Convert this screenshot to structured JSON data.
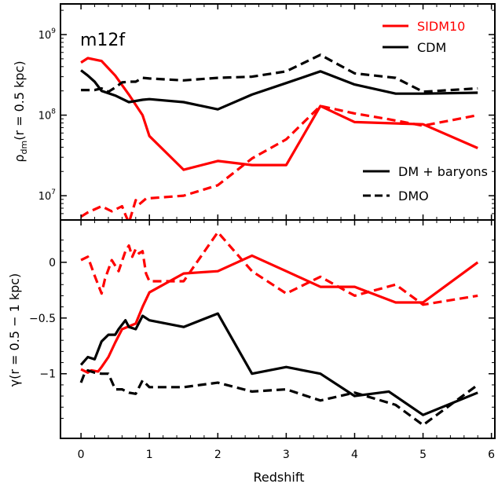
{
  "figure": {
    "xlabel": "Redshift",
    "x_ticks": [
      0,
      1,
      2,
      3,
      4,
      5,
      6
    ],
    "xlim": [
      -0.3,
      6.05
    ]
  },
  "colors": {
    "sidm": "#ff0000",
    "cdm": "#000000"
  },
  "legend_top": {
    "placement": "top-right",
    "entries": [
      {
        "label": "SIDM10",
        "color": "#ff0000",
        "style": "solid"
      },
      {
        "label": "CDM",
        "color": "#000000",
        "style": "solid"
      }
    ]
  },
  "legend_bottom": {
    "placement": "bottom-right",
    "entries": [
      {
        "label": "DM + baryons",
        "style": "solid"
      },
      {
        "label": "DMO",
        "style": "dashed"
      }
    ]
  },
  "chart_data": [
    {
      "type": "line",
      "panel": "top",
      "annotation": "m12f",
      "ylabel": "ρ_dm(r = 0.5 kpc)",
      "ylabel_main": "ρ",
      "ylabel_sub": "dm",
      "ylabel_rest": "(r = 0.5 kpc)",
      "yscale": "log",
      "ylim": [
        5000000,
        2400000000
      ],
      "y_ticks": [
        {
          "value": 10000000,
          "base": "10",
          "exp": "7"
        },
        {
          "value": 100000000,
          "base": "10",
          "exp": "8"
        },
        {
          "value": 1000000000,
          "base": "10",
          "exp": "9"
        }
      ],
      "series": [
        {
          "name": "SIDM10",
          "variant": "DM + baryons",
          "color": "#ff0000",
          "dash": "solid",
          "x": [
            0,
            0.1,
            0.3,
            0.5,
            0.7,
            0.9,
            1.0,
            1.5,
            2.0,
            2.5,
            3.0,
            3.5,
            4.0,
            5.0,
            5.8
          ],
          "y": [
            450000000,
            510000000,
            470000000,
            310000000,
            180000000,
            100000000,
            55000000,
            21000000,
            27000000,
            24000000,
            24000000,
            130000000,
            82000000,
            77000000,
            39000000
          ]
        },
        {
          "name": "SIDM10",
          "variant": "DMO",
          "color": "#ff0000",
          "dash": "dashed",
          "x": [
            0,
            0.1,
            0.3,
            0.45,
            0.6,
            0.65,
            0.7,
            0.8,
            0.85,
            0.95,
            1.0,
            1.5,
            2.0,
            2.5,
            3.0,
            3.5,
            4.0,
            4.5,
            5.0,
            5.8
          ],
          "y": [
            5500000,
            6200000,
            7400000,
            6400000,
            7400000,
            5800000,
            4600000,
            8800000,
            7800000,
            9200000,
            9300000,
            10000000,
            13500000,
            29000000,
            50000000,
            130000000,
            105000000,
            89000000,
            74000000,
            100000000
          ]
        },
        {
          "name": "CDM",
          "variant": "DM + baryons",
          "color": "#000000",
          "dash": "solid",
          "x": [
            0,
            0.1,
            0.2,
            0.3,
            0.5,
            0.7,
            0.9,
            1.0,
            1.5,
            2.0,
            2.5,
            3.0,
            3.5,
            4.0,
            4.6,
            5.0,
            5.8
          ],
          "y": [
            360000000,
            310000000,
            260000000,
            200000000,
            175000000,
            145000000,
            155000000,
            158000000,
            145000000,
            118000000,
            180000000,
            250000000,
            350000000,
            240000000,
            185000000,
            185000000,
            190000000
          ]
        },
        {
          "name": "CDM",
          "variant": "DMO",
          "color": "#000000",
          "dash": "dashed",
          "x": [
            0,
            0.2,
            0.3,
            0.4,
            0.5,
            0.6,
            0.7,
            0.8,
            0.9,
            1.0,
            1.5,
            2.0,
            2.5,
            3.0,
            3.5,
            4.0,
            4.6,
            5.0,
            5.8
          ],
          "y": [
            205000000,
            205000000,
            215000000,
            195000000,
            220000000,
            255000000,
            260000000,
            260000000,
            290000000,
            285000000,
            270000000,
            290000000,
            300000000,
            350000000,
            560000000,
            330000000,
            290000000,
            195000000,
            215000000
          ]
        }
      ]
    },
    {
      "type": "line",
      "panel": "bottom",
      "ylabel": "γ(r = 0.5 − 1 kpc)",
      "ylim": [
        -1.58,
        0.38
      ],
      "y_ticks": [
        {
          "value": 0,
          "label": "0"
        },
        {
          "value": -0.5,
          "label": "−0.5"
        },
        {
          "value": -1,
          "label": "−1"
        }
      ],
      "series": [
        {
          "name": "SIDM10",
          "variant": "DM + baryons",
          "color": "#ff0000",
          "dash": "solid",
          "x": [
            0,
            0.1,
            0.15,
            0.25,
            0.3,
            0.4,
            0.5,
            0.6,
            0.8,
            0.9,
            1.0,
            1.5,
            2.0,
            2.5,
            3.0,
            3.5,
            4.0,
            4.6,
            5.0,
            5.8
          ],
          "y": [
            -0.96,
            -0.99,
            -0.97,
            -0.98,
            -0.94,
            -0.85,
            -0.72,
            -0.6,
            -0.55,
            -0.4,
            -0.27,
            -0.1,
            -0.08,
            0.06,
            -0.08,
            -0.22,
            -0.22,
            -0.36,
            -0.36,
            0.0
          ]
        },
        {
          "name": "SIDM10",
          "variant": "DMO",
          "color": "#ff0000",
          "dash": "dashed",
          "x": [
            0,
            0.1,
            0.2,
            0.3,
            0.35,
            0.45,
            0.55,
            0.65,
            0.7,
            0.75,
            0.8,
            0.85,
            0.9,
            0.95,
            1.0,
            1.5,
            2.0,
            2.5,
            3.0,
            3.5,
            4.0,
            4.6,
            5.0,
            5.8
          ],
          "y": [
            0.02,
            0.05,
            -0.12,
            -0.28,
            -0.15,
            0.02,
            -0.08,
            0.1,
            0.15,
            0.05,
            0.12,
            0.08,
            0.1,
            -0.1,
            -0.17,
            -0.17,
            0.27,
            -0.08,
            -0.28,
            -0.13,
            -0.3,
            -0.2,
            -0.38,
            -0.3
          ]
        },
        {
          "name": "CDM",
          "variant": "DM + baryons",
          "color": "#000000",
          "dash": "solid",
          "x": [
            0,
            0.1,
            0.2,
            0.3,
            0.4,
            0.5,
            0.55,
            0.65,
            0.7,
            0.8,
            0.9,
            1.0,
            1.5,
            2.0,
            2.5,
            3.0,
            3.5,
            4.0,
            4.5,
            5.0,
            5.8
          ],
          "y": [
            -0.92,
            -0.85,
            -0.87,
            -0.71,
            -0.65,
            -0.65,
            -0.6,
            -0.52,
            -0.58,
            -0.6,
            -0.48,
            -0.52,
            -0.58,
            -0.46,
            -1.0,
            -0.94,
            -1.0,
            -1.2,
            -1.16,
            -1.37,
            -1.17
          ]
        },
        {
          "name": "CDM",
          "variant": "DMO",
          "color": "#000000",
          "dash": "dashed",
          "x": [
            0,
            0.05,
            0.1,
            0.2,
            0.3,
            0.4,
            0.5,
            0.6,
            0.7,
            0.8,
            0.9,
            1.0,
            1.5,
            2.0,
            2.5,
            3.0,
            3.5,
            4.0,
            4.6,
            5.0,
            5.8
          ],
          "y": [
            -1.08,
            -1.0,
            -0.97,
            -0.99,
            -1.0,
            -1.0,
            -1.14,
            -1.14,
            -1.17,
            -1.18,
            -1.06,
            -1.12,
            -1.12,
            -1.08,
            -1.16,
            -1.14,
            -1.24,
            -1.17,
            -1.28,
            -1.46,
            -1.1
          ]
        }
      ]
    }
  ]
}
